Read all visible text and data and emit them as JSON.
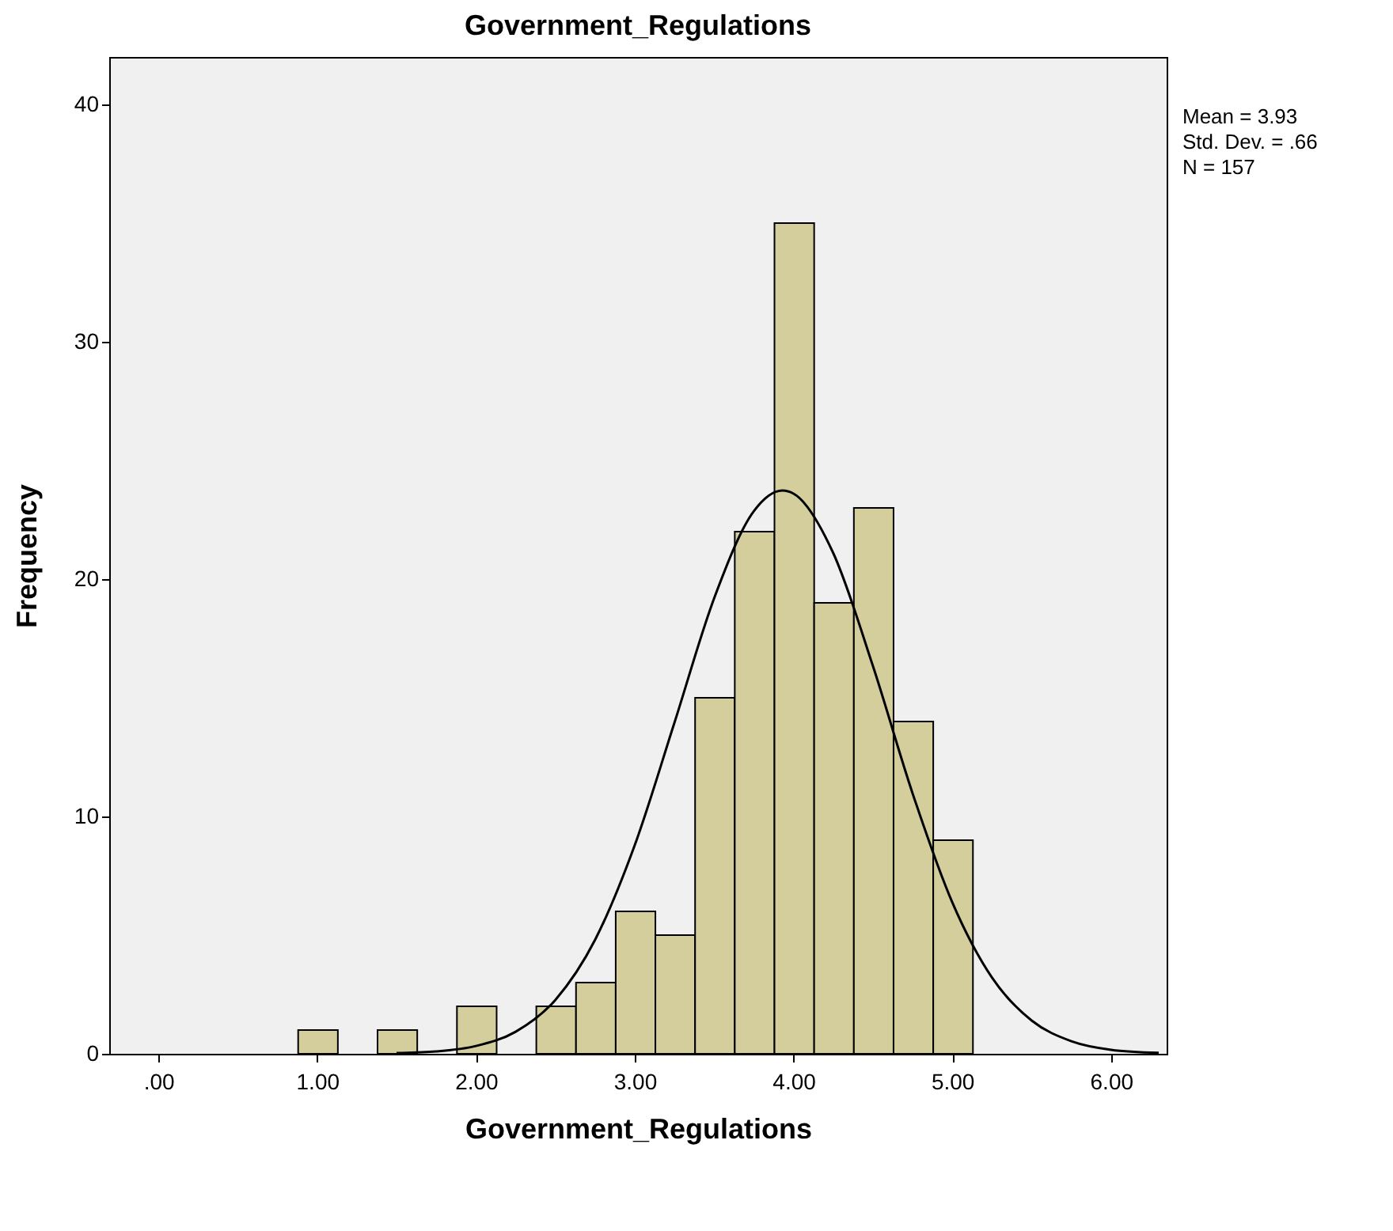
{
  "chart_data": {
    "type": "histogram",
    "title": "Government_Regulations",
    "xlabel": "Government_Regulations",
    "ylabel": "Frequency",
    "annotations": [
      "Mean = 3.93",
      "Std. Dev. = .66",
      "N = 157"
    ],
    "xlim": [
      -0.31,
      6.35
    ],
    "ylim": [
      0,
      42
    ],
    "xticks": [
      {
        "value": 0,
        "label": ".00"
      },
      {
        "value": 1,
        "label": "1.00"
      },
      {
        "value": 2,
        "label": "2.00"
      },
      {
        "value": 3,
        "label": "3.00"
      },
      {
        "value": 4,
        "label": "4.00"
      },
      {
        "value": 5,
        "label": "5.00"
      },
      {
        "value": 6,
        "label": "6.00"
      }
    ],
    "yticks": [
      0,
      10,
      20,
      30,
      40
    ],
    "grid": false,
    "series": [
      {
        "type": "histogram",
        "color": "#d3ce9c",
        "bins": [
          0.88,
          1.13,
          1.38,
          1.63,
          1.88,
          2.13,
          2.38,
          2.63,
          2.88,
          3.13,
          3.38,
          3.63,
          3.88,
          4.13,
          4.38,
          4.63,
          4.88,
          5.13
        ],
        "values": [
          1,
          0,
          1,
          0,
          2,
          0,
          2,
          3,
          6,
          5,
          15,
          22,
          35,
          19,
          23,
          14,
          9
        ]
      },
      {
        "type": "line",
        "color": "#000000",
        "line_style": "solid",
        "x": [
          1.5,
          1.75,
          2.0,
          2.25,
          2.5,
          2.75,
          3.0,
          3.25,
          3.5,
          3.75,
          3.93,
          4.0,
          4.25,
          4.5,
          4.75,
          5.0,
          5.25,
          5.5,
          5.75,
          6.0,
          6.3
        ],
        "values": [
          0.03,
          0.1,
          0.33,
          0.93,
          2.27,
          4.8,
          8.79,
          13.95,
          19.19,
          22.86,
          23.73,
          23.6,
          21.1,
          16.34,
          10.97,
          6.38,
          3.21,
          1.4,
          0.53,
          0.17,
          0.04
        ]
      }
    ]
  }
}
